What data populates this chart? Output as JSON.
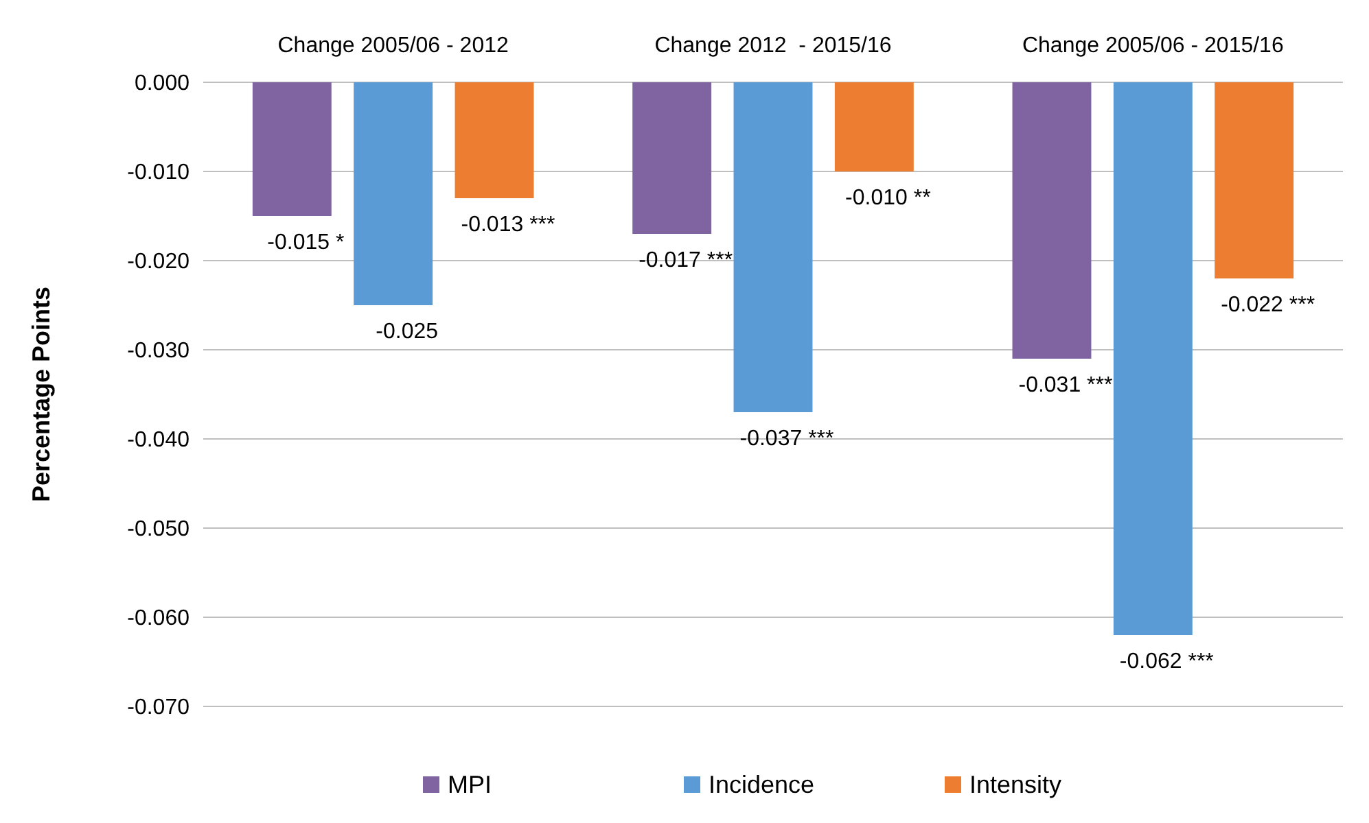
{
  "chart_data": {
    "type": "bar",
    "ylabel": "Percentage Points",
    "categories": [
      "Change 2005/06 - 2012",
      "Change 2012  - 2015/16",
      "Change 2005/06 - 2015/16"
    ],
    "series": [
      {
        "name": "MPI",
        "color": "#8064a2",
        "values": [
          -0.015,
          -0.017,
          -0.031
        ],
        "value_labels": [
          "-0.015 *",
          "-0.017 ***",
          "-0.031 ***"
        ]
      },
      {
        "name": "Incidence",
        "color": "#5b9bd5",
        "values": [
          -0.025,
          -0.037,
          -0.062
        ],
        "value_labels": [
          "-0.025",
          "-0.037 ***",
          "-0.062 ***"
        ]
      },
      {
        "name": "Intensity",
        "color": "#ed7d31",
        "values": [
          -0.013,
          -0.01,
          -0.022
        ],
        "value_labels": [
          "-0.013 ***",
          "-0.010 **",
          "-0.022 ***"
        ]
      }
    ],
    "ylim": [
      -0.07,
      0
    ],
    "yticks": [
      {
        "value": 0,
        "label": "0.000"
      },
      {
        "value": -0.01,
        "label": "-0.010"
      },
      {
        "value": -0.02,
        "label": "-0.020"
      },
      {
        "value": -0.03,
        "label": "-0.030"
      },
      {
        "value": -0.04,
        "label": "-0.040"
      },
      {
        "value": -0.05,
        "label": "-0.050"
      },
      {
        "value": -0.06,
        "label": "-0.060"
      },
      {
        "value": -0.07,
        "label": "-0.070"
      }
    ],
    "grid": "y",
    "legend": "bottom"
  }
}
